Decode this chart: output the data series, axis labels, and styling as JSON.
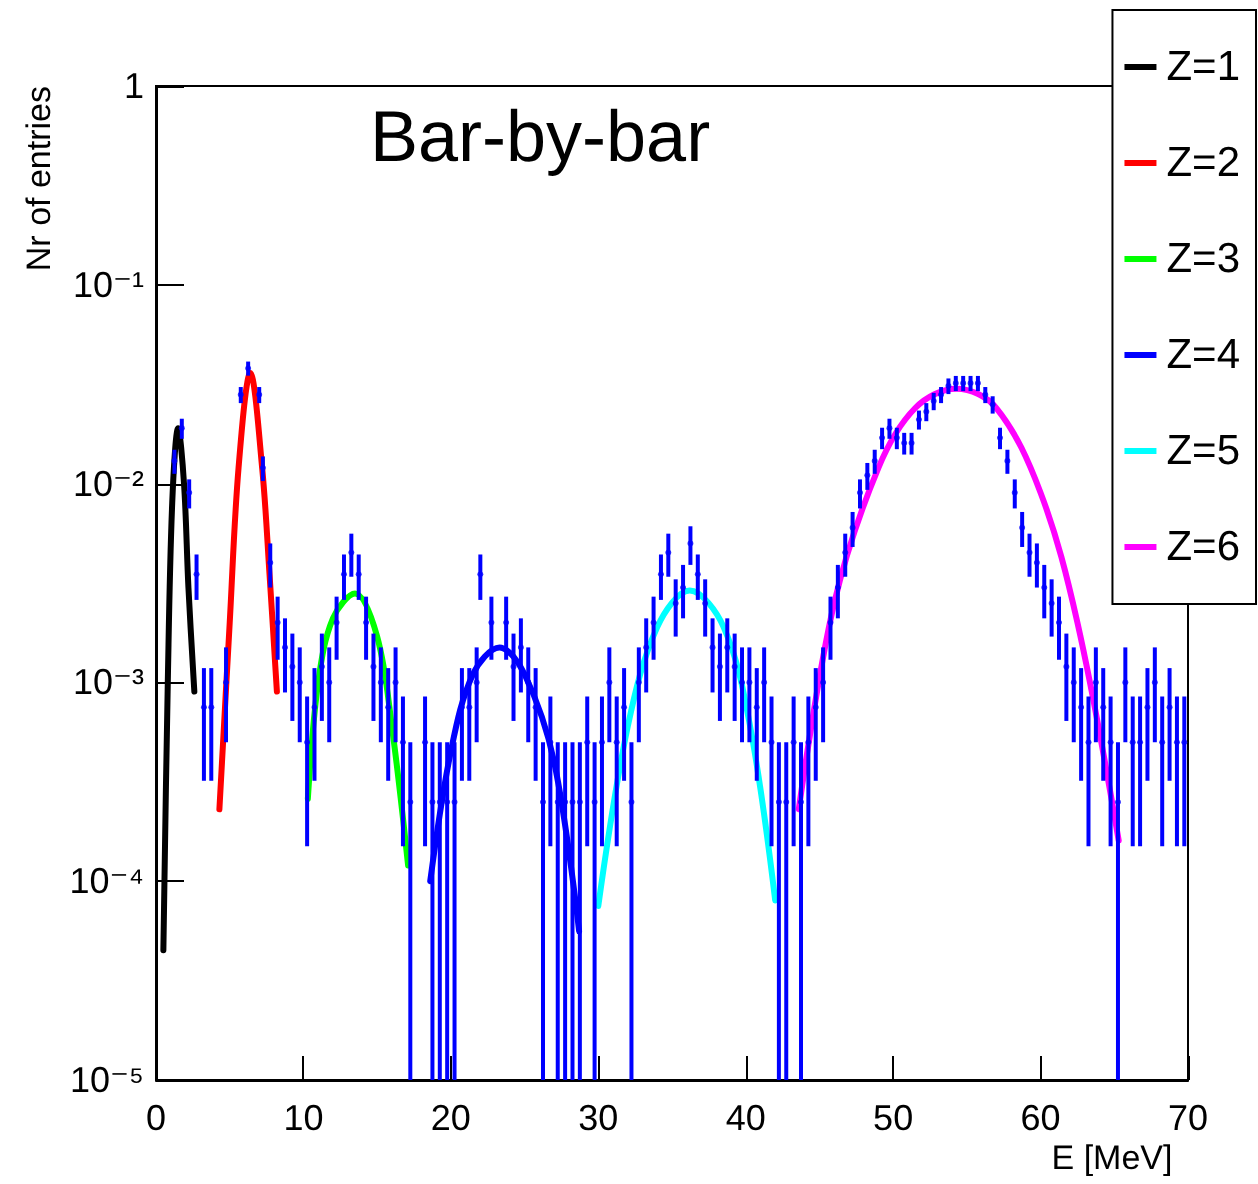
{
  "chart_data": {
    "type": "line",
    "title": "Bar-by-bar",
    "xlabel": "E [MeV]",
    "ylabel": "Nr of entries",
    "xlim": [
      0,
      70
    ],
    "xticks": [
      0,
      10,
      20,
      30,
      40,
      50,
      60,
      70
    ],
    "ylim": [
      1e-05,
      1
    ],
    "yticks": [
      {
        "value": 1e-05,
        "label": "10⁻⁵"
      },
      {
        "value": 0.0001,
        "label": "10⁻⁴"
      },
      {
        "value": 0.001,
        "label": "10⁻³"
      },
      {
        "value": 0.01,
        "label": "10⁻²"
      },
      {
        "value": 0.1,
        "label": "10⁻¹"
      },
      {
        "value": 1,
        "label": "1"
      }
    ],
    "log": "y",
    "grid": false,
    "legend": "top right",
    "series": [
      {
        "type": "scatter",
        "color": "#0000ff",
        "x": [
          1.25,
          1.75,
          2.25,
          2.75,
          3.25,
          3.75,
          4.75,
          5.75,
          6.25,
          7.0,
          7.25,
          7.75,
          8.25,
          8.75,
          9.25,
          9.75,
          10.25,
          10.75,
          11.25,
          11.75,
          12.25,
          12.75,
          13.25,
          13.75,
          14.25,
          14.75,
          15.25,
          15.75,
          16.25,
          16.75,
          17.25,
          18.25,
          18.75,
          19.25,
          19.75,
          20.25,
          20.75,
          21.25,
          21.75,
          22.0,
          22.75,
          23.75,
          24.25,
          24.75,
          25.25,
          25.75,
          26.25,
          26.75,
          27.25,
          27.75,
          28.25,
          28.75,
          29.25,
          29.75,
          30.25,
          30.75,
          31.25,
          31.75,
          32.25,
          32.75,
          33.25,
          33.75,
          34.25,
          34.75,
          35.25,
          35.75,
          36.25,
          36.75,
          37.25,
          37.75,
          38.25,
          38.75,
          39.25,
          39.75,
          40.25,
          40.75,
          41.25,
          41.75,
          42.25,
          42.75,
          43.25,
          43.75,
          44.25,
          44.75,
          45.25,
          45.75,
          46.25,
          46.75,
          47.25,
          47.75,
          48.25,
          48.75,
          49.25,
          49.75,
          50.25,
          50.75,
          51.25,
          51.75,
          52.25,
          52.75,
          53.25,
          53.75,
          54.25,
          54.75,
          55.25,
          55.75,
          56.25,
          56.75,
          57.25,
          57.75,
          58.25,
          58.75,
          59.25,
          59.75,
          60.25,
          60.75,
          61.25,
          61.75,
          62.25,
          62.75,
          63.25,
          63.75,
          64.25,
          64.75,
          65.25,
          65.75,
          66.25,
          66.75,
          67.25,
          67.75,
          68.25,
          68.75,
          69.25,
          69.75
        ],
        "values": [
          0.013,
          0.019,
          0.009,
          0.0035,
          0.00075,
          0.00075,
          0.001,
          0.028,
          0.038,
          0.028,
          0.012,
          0.004,
          0.002,
          0.0015,
          0.0012,
          0.001,
          0.0005,
          0.00075,
          0.0012,
          0.001,
          0.002,
          0.0035,
          0.0045,
          0.0035,
          0.002,
          0.0012,
          0.001,
          0.00075,
          0.001,
          0.0005,
          0.00025,
          0.0005,
          0.00025,
          0.00025,
          0.00025,
          0.00025,
          0.00075,
          0.00075,
          0.001,
          0.0035,
          0.002,
          0.002,
          0.0012,
          0.0015,
          0.001,
          0.00075,
          0.00025,
          0.0005,
          0.00025,
          0.00025,
          0.00025,
          0.00025,
          0.0005,
          0.00025,
          0.0005,
          0.001,
          0.0005,
          0.00075,
          0.00025,
          0.001,
          0.0015,
          0.002,
          0.0035,
          0.0045,
          0.0025,
          0.003,
          0.005,
          0.0035,
          0.0025,
          0.0015,
          0.0012,
          0.0015,
          0.0012,
          0.001,
          0.001,
          0.00075,
          0.001,
          0.0005,
          0.00025,
          0.00025,
          0.0005,
          0.00025,
          0.0005,
          0.00075,
          0.001,
          0.002,
          0.003,
          0.0045,
          0.006,
          0.009,
          0.011,
          0.013,
          0.017,
          0.019,
          0.017,
          0.016,
          0.016,
          0.021,
          0.023,
          0.026,
          0.028,
          0.031,
          0.032,
          0.032,
          0.032,
          0.032,
          0.028,
          0.025,
          0.017,
          0.013,
          0.009,
          0.006,
          0.0045,
          0.004,
          0.003,
          0.0025,
          0.002,
          0.0012,
          0.001,
          0.00075,
          0.0005,
          0.001,
          0.00075,
          0.0005,
          0.00025,
          0.001,
          0.0005,
          0.0005,
          0.00075,
          0.001,
          0.0005,
          0.00075,
          0.0005,
          0.0005
        ],
        "errors": [
          [
            0.0112,
            0.0148
          ],
          [
            0.0168,
            0.0212
          ],
          [
            0.0075,
            0.0105
          ],
          [
            0.0026,
            0.0044
          ],
          [
            0.00032,
            0.00118
          ],
          [
            0.00032,
            0.00118
          ],
          [
            0.0005,
            0.0015
          ],
          [
            0.0254,
            0.0306
          ],
          [
            0.0349,
            0.0411
          ],
          [
            0.0254,
            0.0306
          ],
          [
            0.0103,
            0.0137
          ],
          [
            0.003,
            0.005
          ],
          [
            0.0013,
            0.0027
          ],
          [
            0.00089,
            0.0021
          ],
          [
            0.00064,
            0.00176
          ],
          [
            0.0005,
            0.0015
          ],
          [
            0.00015,
            0.00085
          ],
          [
            0.00032,
            0.00118
          ],
          [
            0.00064,
            0.00176
          ],
          [
            0.0005,
            0.0015
          ],
          [
            0.0013,
            0.0027
          ],
          [
            0.0026,
            0.0044
          ],
          [
            0.0034,
            0.0056
          ],
          [
            0.0026,
            0.0044
          ],
          [
            0.0013,
            0.0027
          ],
          [
            0.00064,
            0.00176
          ],
          [
            0.0005,
            0.0015
          ],
          [
            0.00032,
            0.00118
          ],
          [
            0.0005,
            0.0015
          ],
          [
            0.00015,
            0.00085
          ],
          [
            1e-05,
            0.0005
          ],
          [
            0.00015,
            0.00085
          ],
          [
            1e-05,
            0.0005
          ],
          [
            1e-05,
            0.0005
          ],
          [
            1e-05,
            0.0005
          ],
          [
            1e-05,
            0.0005
          ],
          [
            0.00032,
            0.00118
          ],
          [
            0.00032,
            0.00118
          ],
          [
            0.0005,
            0.0015
          ],
          [
            0.0026,
            0.0044
          ],
          [
            0.0013,
            0.0027
          ],
          [
            0.0013,
            0.0027
          ],
          [
            0.00064,
            0.00176
          ],
          [
            0.00089,
            0.0021
          ],
          [
            0.0005,
            0.0015
          ],
          [
            0.00032,
            0.00118
          ],
          [
            1e-05,
            0.0005
          ],
          [
            0.00015,
            0.00085
          ],
          [
            1e-05,
            0.0005
          ],
          [
            1e-05,
            0.0005
          ],
          [
            1e-05,
            0.0005
          ],
          [
            1e-05,
            0.0005
          ],
          [
            0.00015,
            0.00085
          ],
          [
            1e-05,
            0.0005
          ],
          [
            0.00015,
            0.00085
          ],
          [
            0.0005,
            0.0015
          ],
          [
            0.00015,
            0.00085
          ],
          [
            0.00032,
            0.00118
          ],
          [
            1e-05,
            0.0005
          ],
          [
            0.0005,
            0.0015
          ],
          [
            0.00089,
            0.0021
          ],
          [
            0.0013,
            0.0027
          ],
          [
            0.0026,
            0.0044
          ],
          [
            0.0034,
            0.0056
          ],
          [
            0.0017,
            0.0033
          ],
          [
            0.0021,
            0.0039
          ],
          [
            0.0039,
            0.0061
          ],
          [
            0.0026,
            0.0044
          ],
          [
            0.0017,
            0.0033
          ],
          [
            0.00089,
            0.0021
          ],
          [
            0.00064,
            0.00176
          ],
          [
            0.00089,
            0.0021
          ],
          [
            0.00064,
            0.00176
          ],
          [
            0.0005,
            0.0015
          ],
          [
            0.0005,
            0.0015
          ],
          [
            0.00032,
            0.00118
          ],
          [
            0.0005,
            0.0015
          ],
          [
            0.00015,
            0.00085
          ],
          [
            1e-05,
            0.0005
          ],
          [
            1e-05,
            0.0005
          ],
          [
            0.00015,
            0.00085
          ],
          [
            1e-05,
            0.0005
          ],
          [
            0.00015,
            0.00085
          ],
          [
            0.00032,
            0.00118
          ],
          [
            0.0005,
            0.0015
          ],
          [
            0.0013,
            0.0027
          ],
          [
            0.0021,
            0.0039
          ],
          [
            0.0034,
            0.0056
          ],
          [
            0.0048,
            0.0072
          ],
          [
            0.0075,
            0.0105
          ],
          [
            0.0093,
            0.0127
          ],
          [
            0.0112,
            0.0148
          ],
          [
            0.0149,
            0.0191
          ],
          [
            0.0168,
            0.0212
          ],
          [
            0.0149,
            0.0191
          ],
          [
            0.014,
            0.018
          ],
          [
            0.014,
            0.018
          ],
          [
            0.0187,
            0.0233
          ],
          [
            0.0206,
            0.0254
          ],
          [
            0.0234,
            0.0286
          ],
          [
            0.0254,
            0.0306
          ],
          [
            0.0282,
            0.0338
          ],
          [
            0.0292,
            0.0348
          ],
          [
            0.0292,
            0.0348
          ],
          [
            0.0292,
            0.0348
          ],
          [
            0.0292,
            0.0348
          ],
          [
            0.0254,
            0.0306
          ],
          [
            0.0225,
            0.0275
          ],
          [
            0.0149,
            0.0191
          ],
          [
            0.0112,
            0.0148
          ],
          [
            0.0075,
            0.0105
          ],
          [
            0.0048,
            0.0072
          ],
          [
            0.0034,
            0.0056
          ],
          [
            0.003,
            0.005
          ],
          [
            0.0021,
            0.0039
          ],
          [
            0.0017,
            0.0033
          ],
          [
            0.0013,
            0.0027
          ],
          [
            0.00064,
            0.00176
          ],
          [
            0.0005,
            0.0015
          ],
          [
            0.00032,
            0.00118
          ],
          [
            0.00015,
            0.00085
          ],
          [
            0.0005,
            0.0015
          ],
          [
            0.00032,
            0.00118
          ],
          [
            0.00015,
            0.00085
          ],
          [
            1e-05,
            0.0005
          ],
          [
            0.0005,
            0.0015
          ],
          [
            0.00015,
            0.00085
          ],
          [
            0.00015,
            0.00085
          ],
          [
            0.00032,
            0.00118
          ],
          [
            0.0005,
            0.0015
          ],
          [
            0.00015,
            0.00085
          ],
          [
            0.00032,
            0.00118
          ],
          [
            0.00015,
            0.00085
          ],
          [
            0.00015,
            0.00085
          ]
        ]
      },
      {
        "name": "Z=1",
        "color": "#000000",
        "x": [
          0.5,
          0.8,
          1.1,
          1.5,
          1.9,
          2.2,
          2.6
        ],
        "values": [
          4.5e-05,
          0.001,
          0.008,
          0.019,
          0.01,
          0.003,
          0.0009
        ]
      },
      {
        "name": "Z=2",
        "color": "#ff0000",
        "x": [
          4.3,
          5.0,
          5.6,
          6.4,
          7.2,
          7.7,
          8.2
        ],
        "values": [
          0.00023,
          0.002,
          0.012,
          0.036,
          0.012,
          0.0035,
          0.0009
        ]
      },
      {
        "name": "Z=3",
        "color": "#00ff00",
        "x": [
          10.3,
          11.0,
          12.0,
          13.5,
          15.0,
          16.0,
          17.1
        ],
        "values": [
          0.00026,
          0.001,
          0.0021,
          0.0028,
          0.0017,
          0.0006,
          0.00012
        ]
      },
      {
        "name": "Z=4",
        "color": "#0000ff",
        "x": [
          18.6,
          20.0,
          21.5,
          23.3,
          25.0,
          27.0,
          28.7
        ],
        "values": [
          0.0001,
          0.00045,
          0.0011,
          0.0015,
          0.0011,
          0.0004,
          5.6e-05
        ]
      },
      {
        "name": "Z=5",
        "color": "#00ffff",
        "x": [
          30.0,
          32.0,
          34.0,
          36.2,
          38.5,
          40.3,
          42.0
        ],
        "values": [
          7.5e-05,
          0.0006,
          0.0019,
          0.0029,
          0.0019,
          0.0006,
          8e-05
        ]
      },
      {
        "name": "Z=6",
        "color": "#ff00ff",
        "x": [
          43.6,
          46.0,
          49.0,
          51.5,
          54.3,
          57.0,
          60.0,
          62.5,
          65.3
        ],
        "values": [
          0.00023,
          0.0025,
          0.012,
          0.024,
          0.03,
          0.024,
          0.009,
          0.002,
          0.00016
        ]
      }
    ]
  }
}
